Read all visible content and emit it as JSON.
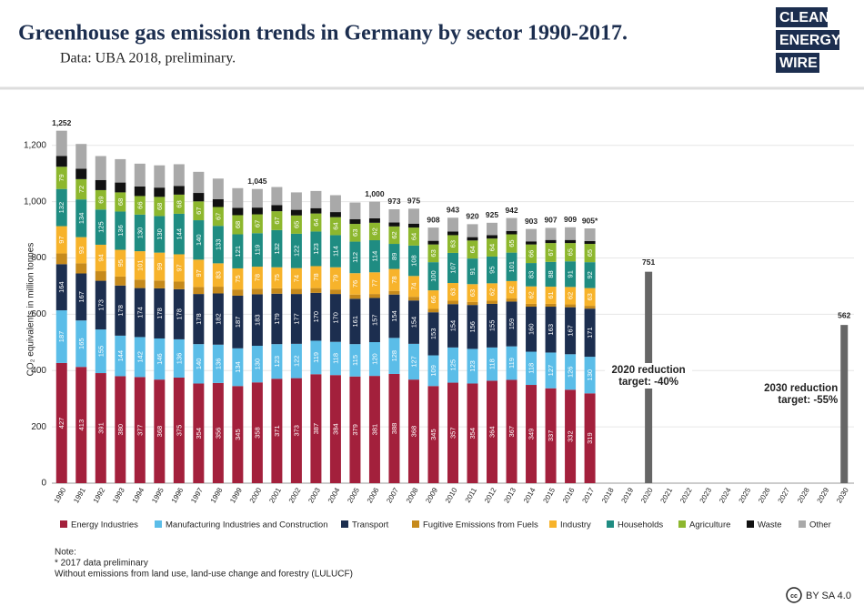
{
  "header": {
    "title": "Greenhouse gas emission trends in Germany by sector 1990-2017.",
    "subtitle": "Data: UBA 2018, preliminary.",
    "logo": [
      "CLEAN",
      "ENERGY",
      "WIRE"
    ]
  },
  "chart_data": {
    "type": "stacked_bar",
    "y_label": "CO₂ equivalents in million tonnes",
    "categories": [
      "1990",
      "1991",
      "1992",
      "1993",
      "1994",
      "1995",
      "1996",
      "1997",
      "1998",
      "1999",
      "2000",
      "2001",
      "2002",
      "2003",
      "2004",
      "2005",
      "2006",
      "2007",
      "2008",
      "2009",
      "2010",
      "2011",
      "2012",
      "2013",
      "2014",
      "2015",
      "2016",
      "2017",
      "2018",
      "2019",
      "2020",
      "2021",
      "2022",
      "2023",
      "2024",
      "2025",
      "2026",
      "2027",
      "2028",
      "2029",
      "2030"
    ],
    "ylim": [
      0,
      1280
    ],
    "yticks": [
      0,
      200,
      400,
      600,
      800,
      {
        "value": 1000,
        "label": "1,000"
      },
      {
        "value": 1200,
        "label": "1,200"
      }
    ],
    "series": [
      {
        "name": "Energy Industries",
        "color": "#a3203c",
        "show_values": true,
        "values": [
          427,
          413,
          391,
          380,
          377,
          368,
          375,
          354,
          356,
          345,
          358,
          371,
          373,
          387,
          384,
          379,
          381,
          388,
          368,
          345,
          357,
          354,
          364,
          367,
          349,
          337,
          332,
          319,
          null,
          null,
          null,
          null,
          null,
          null,
          null,
          null,
          null,
          null,
          null,
          null,
          null
        ]
      },
      {
        "name": "Manufacturing Industries and Construction",
        "color": "#5bbde8",
        "show_values": true,
        "values": [
          187,
          165,
          155,
          144,
          142,
          146,
          136,
          140,
          136,
          134,
          130,
          123,
          122,
          119,
          118,
          115,
          120,
          128,
          127,
          109,
          125,
          123,
          118,
          119,
          118,
          127,
          126,
          130,
          null,
          null,
          null,
          null,
          null,
          null,
          null,
          null,
          null,
          null,
          null,
          null,
          null
        ]
      },
      {
        "name": "Transport",
        "color": "#1c2e4f",
        "show_values": true,
        "values": [
          164,
          167,
          173,
          178,
          174,
          178,
          178,
          178,
          182,
          187,
          183,
          179,
          177,
          170,
          170,
          161,
          157,
          154,
          154,
          153,
          154,
          156,
          155,
          159,
          160,
          163,
          167,
          171,
          null,
          null,
          null,
          null,
          null,
          null,
          null,
          null,
          null,
          null,
          null,
          null,
          null
        ]
      },
      {
        "name": "Fugitive Emissions from Fuels",
        "color": "#c68a1c",
        "show_values": false,
        "values": [
          38,
          36,
          34,
          32,
          30,
          28,
          27,
          25,
          24,
          22,
          20,
          19,
          18,
          17,
          16,
          15,
          14,
          13,
          13,
          12,
          12,
          11,
          11,
          11,
          10,
          10,
          10,
          10,
          null,
          null,
          null,
          null,
          null,
          null,
          null,
          null,
          null,
          null,
          null,
          null,
          null
        ]
      },
      {
        "name": "Industry",
        "color": "#f7b32b",
        "show_values": true,
        "values": [
          97,
          93,
          94,
          95,
          101,
          99,
          97,
          97,
          83,
          75,
          78,
          75,
          74,
          78,
          79,
          76,
          77,
          78,
          74,
          66,
          63,
          63,
          62,
          62,
          62,
          61,
          62,
          63,
          null,
          null,
          null,
          null,
          null,
          null,
          null,
          null,
          null,
          null,
          null,
          null,
          null
        ]
      },
      {
        "name": "Households",
        "color": "#1f8c82",
        "show_values": true,
        "values": [
          132,
          134,
          125,
          136,
          130,
          130,
          144,
          140,
          133,
          121,
          119,
          132,
          122,
          123,
          114,
          112,
          114,
          89,
          108,
          100,
          107,
          91,
          95,
          101,
          83,
          88,
          91,
          92,
          null,
          null,
          null,
          null,
          null,
          null,
          null,
          null,
          null,
          null,
          null,
          null,
          null
        ]
      },
      {
        "name": "Agriculture",
        "color": "#8db72e",
        "show_values": true,
        "values": [
          79,
          72,
          69,
          68,
          66,
          68,
          68,
          67,
          67,
          68,
          67,
          67,
          65,
          64,
          64,
          63,
          62,
          62,
          64,
          63,
          63,
          64,
          64,
          65,
          66,
          67,
          65,
          65,
          null,
          null,
          null,
          null,
          null,
          null,
          null,
          null,
          null,
          null,
          null,
          null,
          null
        ]
      },
      {
        "name": "Waste",
        "color": "#111111",
        "show_values": false,
        "values": [
          38,
          37,
          36,
          35,
          34,
          33,
          31,
          30,
          28,
          26,
          24,
          22,
          20,
          19,
          18,
          17,
          16,
          14,
          14,
          13,
          13,
          12,
          12,
          12,
          11,
          11,
          11,
          10,
          null,
          null,
          null,
          null,
          null,
          null,
          null,
          null,
          null,
          null,
          null,
          null,
          null
        ]
      },
      {
        "name": "Other",
        "color": "#a9a9a9",
        "show_values": false,
        "values": [
          90,
          88,
          85,
          83,
          81,
          79,
          77,
          75,
          73,
          70,
          66,
          64,
          62,
          61,
          60,
          59,
          59,
          47,
          53,
          47,
          49,
          46,
          44,
          46,
          44,
          43,
          45,
          45,
          null,
          null,
          null,
          null,
          null,
          null,
          null,
          null,
          null,
          null,
          null,
          null,
          null
        ]
      }
    ],
    "totals": {
      "values": [
        1252,
        null,
        null,
        null,
        null,
        null,
        null,
        null,
        null,
        null,
        1045,
        null,
        null,
        null,
        null,
        null,
        1000,
        973,
        975,
        908,
        943,
        920,
        925,
        942,
        903,
        907,
        909,
        905,
        null,
        null,
        null,
        null,
        null,
        null,
        null,
        null,
        null,
        null,
        null,
        null,
        null
      ],
      "value_labels": [
        "1,252",
        null,
        null,
        null,
        null,
        null,
        null,
        null,
        null,
        null,
        "1,045",
        null,
        null,
        null,
        null,
        null,
        "1,000",
        "973",
        "975",
        "908",
        "943",
        "920",
        "925",
        "942",
        "903",
        "907",
        "909",
        "905*",
        null,
        null,
        null,
        null,
        null,
        null,
        null,
        null,
        null,
        null,
        null,
        null,
        null
      ]
    },
    "targets": {
      "color": "#666666",
      "categories": [
        "2020",
        "2030"
      ],
      "values": [
        751,
        562
      ],
      "annotations": [
        [
          "2020 reduction",
          "target: -40%"
        ],
        [
          "2030 reduction",
          "target: -55%"
        ]
      ]
    }
  },
  "notes": [
    "Note:",
    "* 2017 data preliminary",
    "Without emissions from land use, land-use change and forestry (LULUCF)"
  ],
  "license": "BY SA 4.0"
}
